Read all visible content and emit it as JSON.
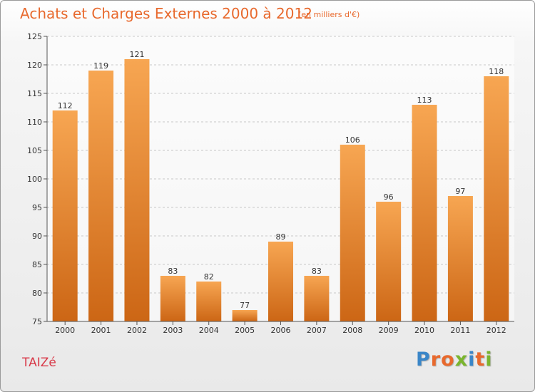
{
  "header": {
    "title": "Achats et Charges Externes 2000 à 2012",
    "subtitle": "(en milliers d'€)"
  },
  "footer": {
    "commune": "TAIZé",
    "logo": [
      "P",
      "r",
      "o",
      "x",
      "i",
      "t",
      "i"
    ]
  },
  "colors": {
    "title": "#e8692d",
    "commune": "#d83a49",
    "bar_top": "#f7a652",
    "bar_bottom": "#cc6615",
    "logo": [
      "#3a86c8",
      "#e8692d",
      "#e8692d",
      "#7ab52e",
      "#3a86c8",
      "#e8692d",
      "#7ab52e"
    ]
  },
  "chart_data": {
    "type": "bar",
    "title": "Achats et Charges Externes 2000 à 2012",
    "subtitle": "(en milliers d'€)",
    "categories": [
      "2000",
      "2001",
      "2002",
      "2003",
      "2004",
      "2005",
      "2006",
      "2007",
      "2008",
      "2009",
      "2010",
      "2011",
      "2012"
    ],
    "values": [
      112,
      119,
      121,
      83,
      82,
      77,
      89,
      83,
      106,
      96,
      113,
      97,
      118
    ],
    "ylim": [
      75,
      125
    ],
    "yticks": [
      75,
      80,
      85,
      90,
      95,
      100,
      105,
      110,
      115,
      120,
      125
    ],
    "grid": true,
    "xlabel": "",
    "ylabel": ""
  }
}
